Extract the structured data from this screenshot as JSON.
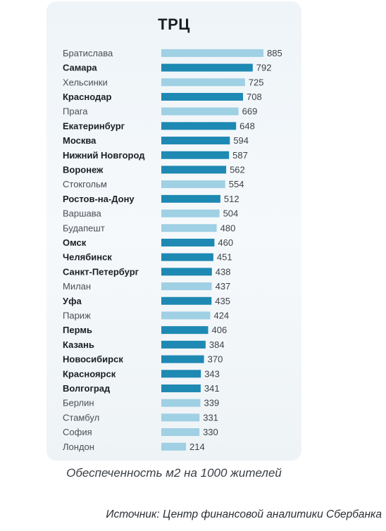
{
  "chart_data": {
    "type": "bar",
    "title": "ТРЦ",
    "subtitle": "Обеспеченность м2 на 1000 жителей",
    "source": "Источник: Центр финансовой аналитики Сбербанка",
    "categories": [
      "Братислава",
      "Самара",
      "Хельсинки",
      "Краснодар",
      "Прага",
      "Екатеринбург",
      "Москва",
      "Нижний Новгород",
      "Воронеж",
      "Стокгольм",
      "Ростов-на-Дону",
      "Варшава",
      "Будапешт",
      "Омск",
      "Челябинск",
      "Санкт-Петербург",
      "Милан",
      "Уфа",
      "Париж",
      "Пермь",
      "Казань",
      "Новосибирск",
      "Красноярск",
      "Волгоград",
      "Берлин",
      "Стамбул",
      "София",
      "Лондон"
    ],
    "values": [
      885,
      792,
      725,
      708,
      669,
      648,
      594,
      587,
      562,
      554,
      512,
      504,
      480,
      460,
      451,
      438,
      437,
      435,
      424,
      406,
      384,
      370,
      343,
      341,
      339,
      331,
      330,
      214
    ],
    "russian": [
      false,
      true,
      false,
      true,
      false,
      true,
      true,
      true,
      true,
      false,
      true,
      false,
      false,
      true,
      true,
      true,
      false,
      true,
      false,
      true,
      true,
      true,
      true,
      true,
      false,
      false,
      false,
      false
    ],
    "colors": {
      "russian": "#1e89b3",
      "foreign": "#9fd0e4"
    },
    "orientation": "horizontal"
  }
}
